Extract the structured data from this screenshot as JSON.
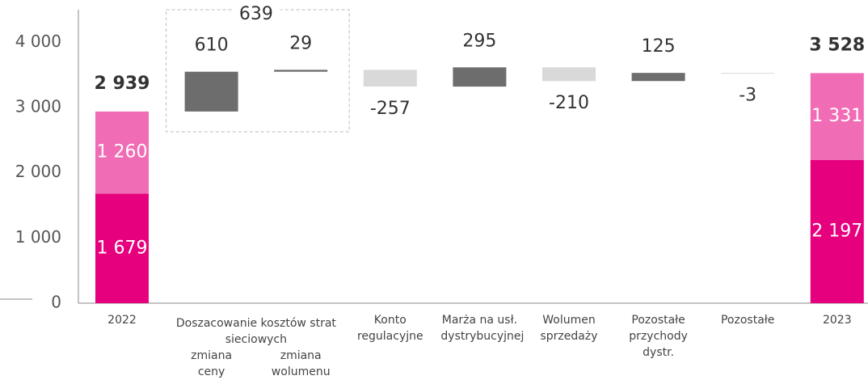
{
  "chart_data": {
    "type": "waterfall",
    "ylim": [
      0,
      4500
    ],
    "yticks": [
      0,
      {
        "value": 1000,
        "label": "1 000"
      },
      {
        "value": 2000,
        "label": "2 000"
      },
      {
        "value": 3000,
        "label": "3 000"
      },
      {
        "value": 4000,
        "label": "4 000"
      }
    ],
    "columns": [
      {
        "category": "2022",
        "segments": [
          {
            "value": 1679,
            "value_label": "1 679",
            "color": "#e6007e"
          },
          {
            "value": 1260,
            "value_label": "1 260",
            "color": "#f06cb5"
          }
        ],
        "total": 2939,
        "total_label": "2 939"
      },
      {
        "category": "Doszacowanie kosztów strat sieciowych",
        "total": 639,
        "steps": [
          {
            "label": "zmiana ceny",
            "value": 610,
            "color": "#6d6d6d"
          },
          {
            "label": "zmiana wolumenu",
            "value": 29,
            "color": "#6d6d6d"
          }
        ]
      },
      {
        "category": "Konto regulacyjne",
        "steps": [
          {
            "value": -257,
            "color": "#d9d9d9"
          }
        ]
      },
      {
        "category": "Marża na usł. dystrybucyjnej",
        "steps": [
          {
            "value": 295,
            "color": "#6d6d6d"
          }
        ]
      },
      {
        "category": "Wolumen sprzedaży",
        "steps": [
          {
            "value": -210,
            "color": "#d9d9d9"
          }
        ]
      },
      {
        "category": "Pozostałe przychody dystr.",
        "steps": [
          {
            "value": 125,
            "color": "#6d6d6d"
          }
        ]
      },
      {
        "category": "Pozostałe",
        "steps": [
          {
            "value": -3,
            "color": "#d9d9d9"
          }
        ]
      },
      {
        "category": "2023",
        "segments": [
          {
            "value": 2197,
            "value_label": "2 197",
            "color": "#e6007e"
          },
          {
            "value": 1331,
            "value_label": "1 331",
            "color": "#f06cb5"
          }
        ],
        "total": 3528,
        "total_label": "3 528"
      }
    ]
  }
}
